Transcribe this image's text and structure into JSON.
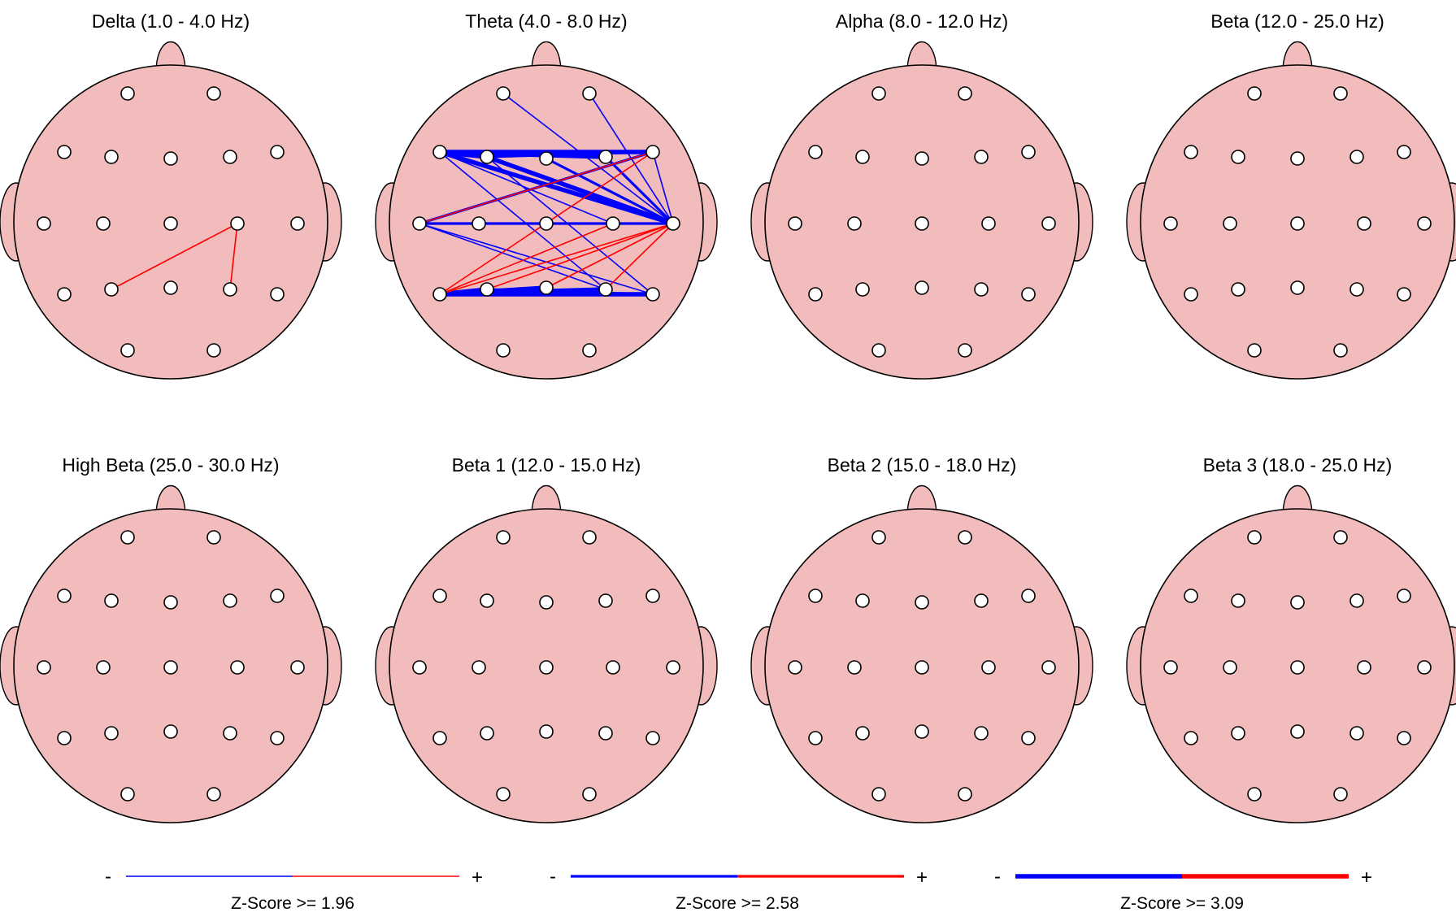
{
  "colors": {
    "head_fill": "#f2bcbc",
    "outline": "#000000",
    "electrode_fill": "#ffffff",
    "negative": "#0000ff",
    "positive": "#ff0000"
  },
  "electrodes": [
    "Fp1",
    "Fp2",
    "F7",
    "F3",
    "Fz",
    "F4",
    "F8",
    "T3",
    "C3",
    "Cz",
    "C4",
    "T4",
    "T5",
    "P3",
    "Pz",
    "P4",
    "T6",
    "O1",
    "O2"
  ],
  "maps": [
    {
      "title": "Delta (1.0 - 4.0 Hz)",
      "connections": [
        {
          "from": "C4",
          "to": "P3",
          "sign": "+",
          "weight": 1
        },
        {
          "from": "C4",
          "to": "P4",
          "sign": "+",
          "weight": 1
        }
      ]
    },
    {
      "title": "Theta (4.0 - 8.0 Hz)",
      "connections": [
        {
          "from": "F7",
          "to": "F3",
          "sign": "-",
          "weight": 3
        },
        {
          "from": "F7",
          "to": "F4",
          "sign": "-",
          "weight": 3
        },
        {
          "from": "F7",
          "to": "F8",
          "sign": "-",
          "weight": 3
        },
        {
          "from": "F3",
          "to": "F8",
          "sign": "-",
          "weight": 2
        },
        {
          "from": "F7",
          "to": "T4",
          "sign": "-",
          "weight": 3
        },
        {
          "from": "F3",
          "to": "T4",
          "sign": "-",
          "weight": 3
        },
        {
          "from": "Fz",
          "to": "T4",
          "sign": "-",
          "weight": 2
        },
        {
          "from": "F4",
          "to": "T4",
          "sign": "-",
          "weight": 2
        },
        {
          "from": "F8",
          "to": "T4",
          "sign": "-",
          "weight": 1
        },
        {
          "from": "Fp1",
          "to": "T4",
          "sign": "-",
          "weight": 1
        },
        {
          "from": "Fp2",
          "to": "T4",
          "sign": "-",
          "weight": 1
        },
        {
          "from": "T3",
          "to": "F8",
          "sign": "-",
          "weight": 2
        },
        {
          "from": "T3",
          "to": "T4",
          "sign": "-",
          "weight": 2
        },
        {
          "from": "C3",
          "to": "T4",
          "sign": "-",
          "weight": 1
        },
        {
          "from": "Cz",
          "to": "T4",
          "sign": "-",
          "weight": 1
        },
        {
          "from": "C4",
          "to": "T4",
          "sign": "-",
          "weight": 1
        },
        {
          "from": "F7",
          "to": "C4",
          "sign": "-",
          "weight": 1
        },
        {
          "from": "F7",
          "to": "P4",
          "sign": "-",
          "weight": 1
        },
        {
          "from": "F3",
          "to": "T6",
          "sign": "-",
          "weight": 1
        },
        {
          "from": "T5",
          "to": "P3",
          "sign": "-",
          "weight": 3
        },
        {
          "from": "T5",
          "to": "Pz",
          "sign": "-",
          "weight": 3
        },
        {
          "from": "T5",
          "to": "P4",
          "sign": "-",
          "weight": 3
        },
        {
          "from": "T5",
          "to": "T6",
          "sign": "-",
          "weight": 3
        },
        {
          "from": "P3",
          "to": "T6",
          "sign": "-",
          "weight": 2
        },
        {
          "from": "T3",
          "to": "P4",
          "sign": "-",
          "weight": 1
        },
        {
          "from": "T3",
          "to": "T6",
          "sign": "-",
          "weight": 1
        },
        {
          "from": "T5",
          "to": "F8",
          "sign": "+",
          "weight": 1
        },
        {
          "from": "T3",
          "to": "F8",
          "sign": "+",
          "weight": 1
        },
        {
          "from": "T5",
          "to": "T4",
          "sign": "+",
          "weight": 1
        },
        {
          "from": "P3",
          "to": "T4",
          "sign": "+",
          "weight": 1
        },
        {
          "from": "Pz",
          "to": "T4",
          "sign": "+",
          "weight": 1
        },
        {
          "from": "P4",
          "to": "T4",
          "sign": "+",
          "weight": 1
        },
        {
          "from": "T5",
          "to": "C4",
          "sign": "+",
          "weight": 1
        }
      ]
    },
    {
      "title": "Alpha (8.0 - 12.0 Hz)",
      "connections": []
    },
    {
      "title": "Beta (12.0 - 25.0 Hz)",
      "connections": []
    },
    {
      "title": "High Beta (25.0 - 30.0 Hz)",
      "connections": []
    },
    {
      "title": "Beta 1 (12.0 - 15.0 Hz)",
      "connections": []
    },
    {
      "title": "Beta 2 (15.0 - 18.0 Hz)",
      "connections": []
    },
    {
      "title": "Beta 3 (18.0 - 25.0 Hz)",
      "connections": []
    }
  ],
  "legends": [
    {
      "minus": "-",
      "plus": "+",
      "label": "Z-Score >= 1.96",
      "weight": 1
    },
    {
      "minus": "-",
      "plus": "+",
      "label": "Z-Score >= 2.58",
      "weight": 2
    },
    {
      "minus": "-",
      "plus": "+",
      "label": "Z-Score >= 3.09",
      "weight": 3
    }
  ]
}
